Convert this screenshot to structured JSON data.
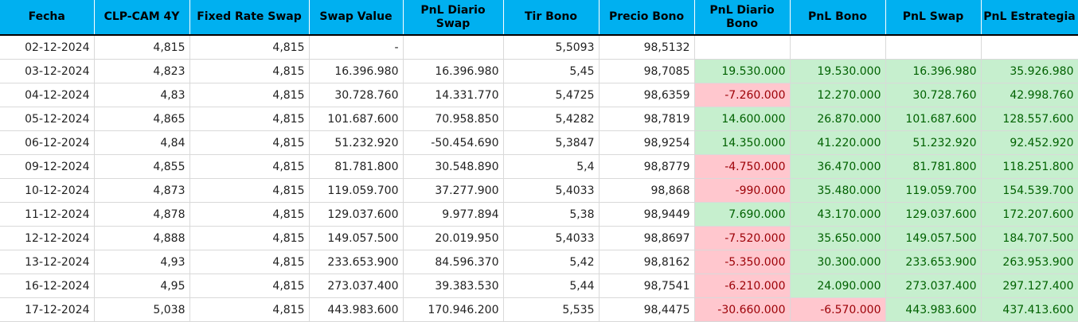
{
  "colors": {
    "header_bg": "#00b0f0",
    "positive_bg": "#c6efce",
    "positive_fg": "#006100",
    "negative_bg": "#ffc7ce",
    "negative_fg": "#9c0006"
  },
  "headers": [
    "Fecha",
    "CLP-CAM 4Y",
    "Fixed Rate Swap",
    "Swap Value",
    "PnL Diario Swap",
    "Tir Bono",
    "Precio Bono",
    "PnL Diario Bono",
    "PnL Bono",
    "PnL Swap",
    "PnL Estrategia"
  ],
  "rows": [
    [
      "02-12-2024",
      "4,815",
      "4,815",
      "-",
      "",
      "5,5093",
      "98,5132",
      "",
      "",
      "",
      ""
    ],
    [
      "03-12-2024",
      "4,823",
      "4,815",
      "16.396.980",
      "16.396.980",
      "5,45",
      "98,7085",
      "19.530.000",
      "19.530.000",
      "16.396.980",
      "35.926.980"
    ],
    [
      "04-12-2024",
      "4,83",
      "4,815",
      "30.728.760",
      "14.331.770",
      "5,4725",
      "98,6359",
      "-7.260.000",
      "12.270.000",
      "30.728.760",
      "42.998.760"
    ],
    [
      "05-12-2024",
      "4,865",
      "4,815",
      "101.687.600",
      "70.958.850",
      "5,4282",
      "98,7819",
      "14.600.000",
      "26.870.000",
      "101.687.600",
      "128.557.600"
    ],
    [
      "06-12-2024",
      "4,84",
      "4,815",
      "51.232.920",
      "-50.454.690",
      "5,3847",
      "98,9254",
      "14.350.000",
      "41.220.000",
      "51.232.920",
      "92.452.920"
    ],
    [
      "09-12-2024",
      "4,855",
      "4,815",
      "81.781.800",
      "30.548.890",
      "5,4",
      "98,8779",
      "-4.750.000",
      "36.470.000",
      "81.781.800",
      "118.251.800"
    ],
    [
      "10-12-2024",
      "4,873",
      "4,815",
      "119.059.700",
      "37.277.900",
      "5,4033",
      "98,868",
      "-990.000",
      "35.480.000",
      "119.059.700",
      "154.539.700"
    ],
    [
      "11-12-2024",
      "4,878",
      "4,815",
      "129.037.600",
      "9.977.894",
      "5,38",
      "98,9449",
      "7.690.000",
      "43.170.000",
      "129.037.600",
      "172.207.600"
    ],
    [
      "12-12-2024",
      "4,888",
      "4,815",
      "149.057.500",
      "20.019.950",
      "5,4033",
      "98,8697",
      "-7.520.000",
      "35.650.000",
      "149.057.500",
      "184.707.500"
    ],
    [
      "13-12-2024",
      "4,93",
      "4,815",
      "233.653.900",
      "84.596.370",
      "5,42",
      "98,8162",
      "-5.350.000",
      "30.300.000",
      "233.653.900",
      "263.953.900"
    ],
    [
      "16-12-2024",
      "4,95",
      "4,815",
      "273.037.400",
      "39.383.530",
      "5,44",
      "98,7541",
      "-6.210.000",
      "24.090.000",
      "273.037.400",
      "297.127.400"
    ],
    [
      "17-12-2024",
      "5,038",
      "4,815",
      "443.983.600",
      "170.946.200",
      "5,535",
      "98,4475",
      "-30.660.000",
      "-6.570.000",
      "443.983.600",
      "437.413.600"
    ]
  ]
}
